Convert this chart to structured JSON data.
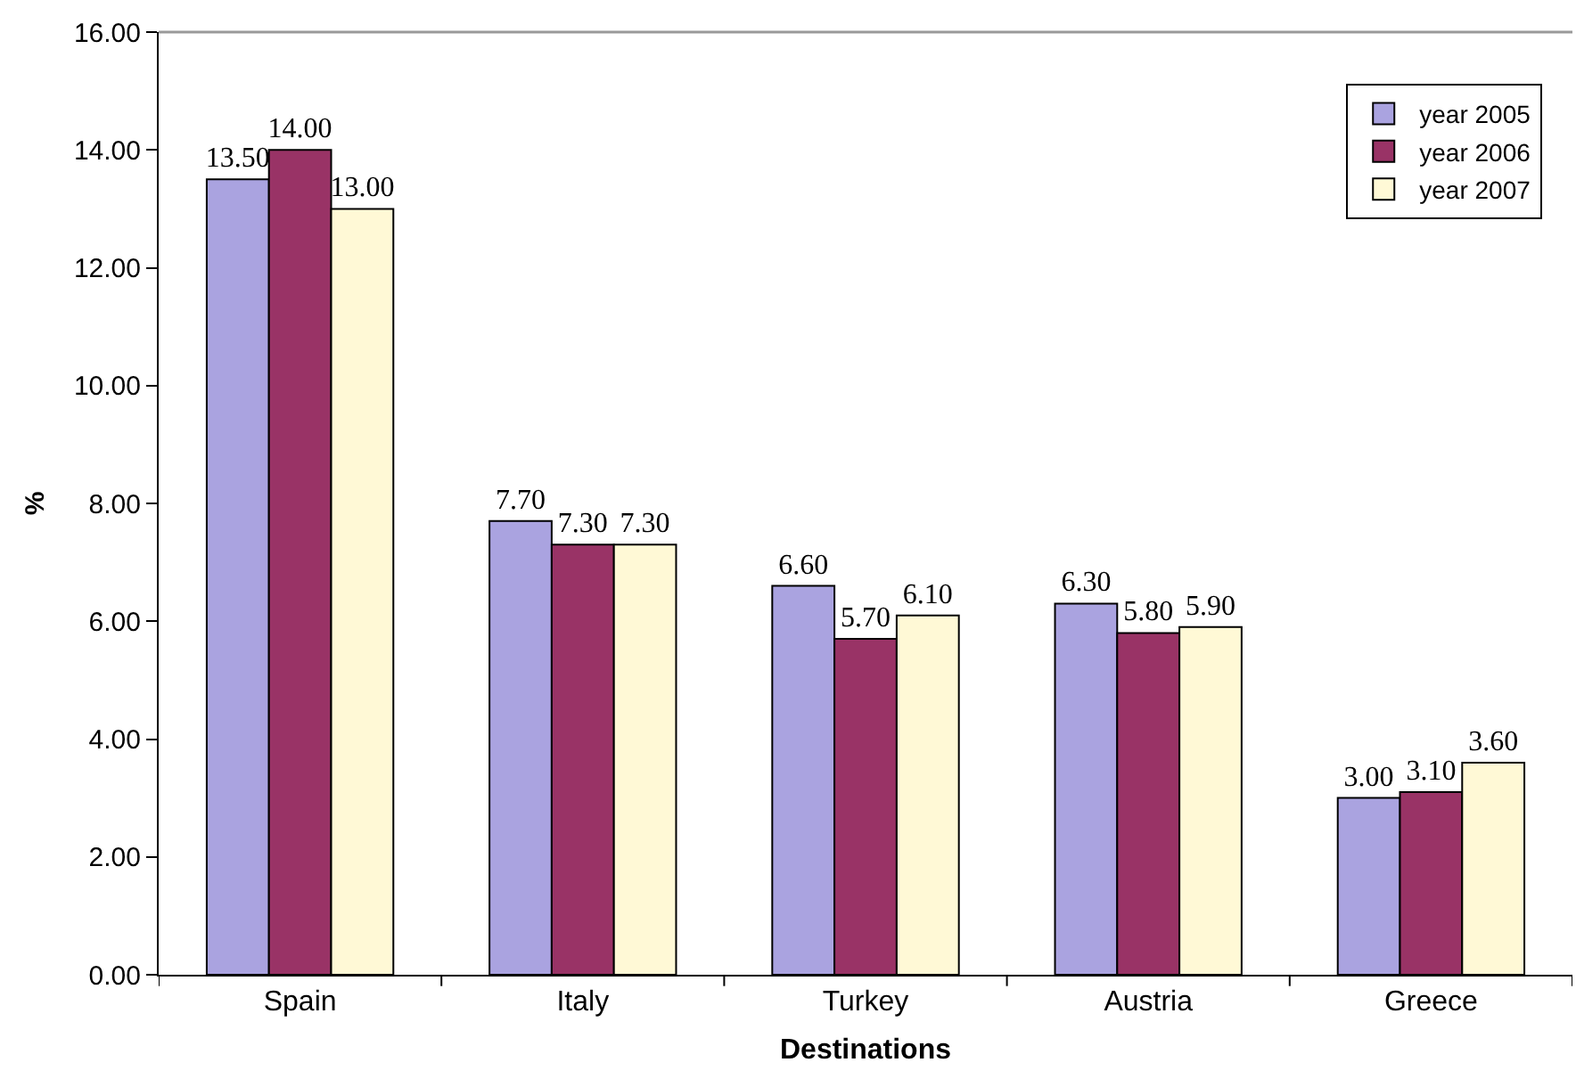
{
  "chart_data": {
    "type": "bar",
    "xlabel": "Destinations",
    "ylabel": "%",
    "categories": [
      "Spain",
      "Italy",
      "Turkey",
      "Austria",
      "Greece"
    ],
    "series": [
      {
        "name": "year 2005",
        "color": "#aaa3e0",
        "values": [
          13.5,
          7.7,
          6.6,
          6.3,
          3.0
        ],
        "value_labels": [
          "13.50",
          "7.70",
          "6.60",
          "6.30",
          "3.00"
        ]
      },
      {
        "name": "year 2006",
        "color": "#993366",
        "values": [
          14.0,
          7.3,
          5.7,
          5.8,
          3.1
        ],
        "value_labels": [
          "14.00",
          "7.30",
          "5.70",
          "5.80",
          "3.10"
        ]
      },
      {
        "name": "year 2007",
        "color": "#fff9d6",
        "values": [
          13.0,
          7.3,
          6.1,
          5.9,
          3.6
        ],
        "value_labels": [
          "13.00",
          "7.30",
          "6.10",
          "5.90",
          "3.60"
        ]
      }
    ],
    "ylim": [
      0,
      16
    ],
    "yticks": [
      {
        "value": 0,
        "label": "0.00"
      },
      {
        "value": 2,
        "label": "2.00"
      },
      {
        "value": 4,
        "label": "4.00"
      },
      {
        "value": 6,
        "label": "6.00"
      },
      {
        "value": 8,
        "label": "8.00"
      },
      {
        "value": 10,
        "label": "10.00"
      },
      {
        "value": 12,
        "label": "12.00"
      },
      {
        "value": 14,
        "label": "14.00"
      },
      {
        "value": 16,
        "label": "16.00"
      }
    ],
    "grid": false,
    "legend": "top right"
  }
}
